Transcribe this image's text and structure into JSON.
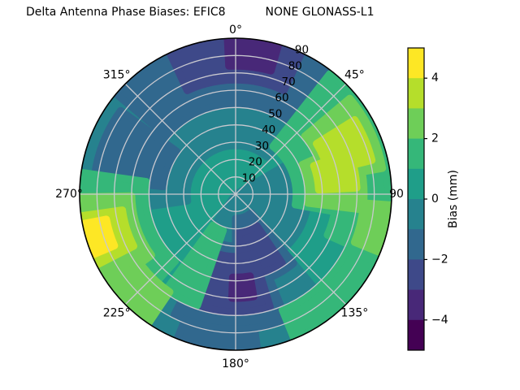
{
  "chart_data": {
    "type": "polar_contour",
    "title": "Delta Antenna Phase Biases: EFIC8           NONE GLONASS-L1",
    "projection": "azimuth clockwise from North (0° top), radial axis 0-90",
    "angular_ticks": [
      {
        "angle": 0,
        "label": "0°"
      },
      {
        "angle": 45,
        "label": "45°"
      },
      {
        "angle": 90,
        "label": "90"
      },
      {
        "angle": 135,
        "label": "135°"
      },
      {
        "angle": 180,
        "label": "180°"
      },
      {
        "angle": 225,
        "label": "225°"
      },
      {
        "angle": 270,
        "label": "270°"
      },
      {
        "angle": 315,
        "label": "315°"
      }
    ],
    "radial_ticks": [
      10,
      20,
      30,
      40,
      50,
      60,
      70,
      80,
      90
    ],
    "colorbar": {
      "label": "Bias (mm)",
      "range": [
        -5,
        5
      ],
      "n_levels": 10,
      "ticks": [
        4,
        2,
        0,
        -2,
        -4
      ],
      "tick_labels": [
        "4",
        "2",
        "0",
        "−2",
        "−4"
      ],
      "colors_low_to_high": [
        "#440154",
        "#482878",
        "#3e4989",
        "#31688e",
        "#26828e",
        "#1f9e89",
        "#35b779",
        "#6ece58",
        "#b5de2b",
        "#fde725"
      ]
    },
    "background_bias_mid": 0.5,
    "regions": [
      {
        "name": "upper-band-teal-blue",
        "bias_mid": -0.5,
        "az": [
          262,
          400
        ],
        "r": [
          28,
          90
        ]
      },
      {
        "name": "center-right-teal-blue",
        "bias_mid": -0.5,
        "az": [
          60,
          160
        ],
        "r": [
          0,
          42
        ]
      },
      {
        "name": "bottom-teal-blue",
        "bias_mid": -0.5,
        "az": [
          140,
          215
        ],
        "r": [
          0,
          88
        ]
      },
      {
        "name": "top-blue-band",
        "bias_mid": -1.5,
        "az": [
          310,
          407
        ],
        "r": [
          52,
          90
        ]
      },
      {
        "name": "left-blue-patch",
        "bias_mid": -1.5,
        "az": [
          276,
          306
        ],
        "r": [
          42,
          82
        ]
      },
      {
        "name": "bottom-blue-upper",
        "bias_mid": -1.5,
        "az": [
          140,
          180
        ],
        "r": [
          14,
          52
        ]
      },
      {
        "name": "bottom-blue-lower",
        "bias_mid": -1.5,
        "az": [
          158,
          207
        ],
        "r": [
          30,
          78
        ]
      },
      {
        "name": "bottom-edge-blue-arc",
        "bias_mid": -1.5,
        "az": [
          172,
          202
        ],
        "r": [
          78,
          90
        ]
      },
      {
        "name": "top-indigo-arc",
        "bias_mid": -2.5,
        "az": [
          335,
          385
        ],
        "r": [
          66,
          90
        ]
      },
      {
        "name": "bottom-indigo-upper",
        "bias_mid": -2.5,
        "az": [
          146,
          176
        ],
        "r": [
          22,
          48
        ]
      },
      {
        "name": "bottom-indigo-lower",
        "bias_mid": -2.5,
        "az": [
          163,
          199
        ],
        "r": [
          36,
          68
        ]
      },
      {
        "name": "top-purple-blob",
        "bias_mid": -3.5,
        "az": [
          357,
          376
        ],
        "r": [
          74,
          90
        ]
      },
      {
        "name": "bottom-purple-spot",
        "bias_mid": -3.5,
        "az": [
          170,
          182
        ],
        "r": [
          48,
          60
        ]
      },
      {
        "name": "upper-right-green",
        "bias_mid": 1.5,
        "az": [
          38,
          100
        ],
        "r": [
          35,
          88
        ]
      },
      {
        "name": "right-edge-green",
        "bias_mid": 1.5,
        "az": [
          92,
          114
        ],
        "r": [
          58,
          90
        ]
      },
      {
        "name": "left-edge-green-band",
        "bias_mid": 1.5,
        "az": [
          222,
          278
        ],
        "r": [
          52,
          90
        ]
      },
      {
        "name": "lower-left-green-finger",
        "bias_mid": 1.5,
        "az": [
          199,
          216
        ],
        "r": [
          22,
          68
        ]
      },
      {
        "name": "bottom-right-edge-green",
        "bias_mid": 1.5,
        "az": [
          116,
          158
        ],
        "r": [
          72,
          90
        ]
      },
      {
        "name": "upper-right-bright-a",
        "bias_mid": 2.5,
        "az": [
          50,
          80
        ],
        "r": [
          52,
          86
        ]
      },
      {
        "name": "upper-right-bright-b",
        "bias_mid": 2.5,
        "az": [
          66,
          97
        ],
        "r": [
          42,
          74
        ]
      },
      {
        "name": "left-bright-band",
        "bias_mid": 2.5,
        "az": [
          234,
          269
        ],
        "r": [
          60,
          90
        ]
      },
      {
        "name": "lower-left-bright-patch",
        "bias_mid": 2.5,
        "az": [
          214,
          232
        ],
        "r": [
          68,
          90
        ]
      },
      {
        "name": "right-edge-bright-patch",
        "bias_mid": 2.5,
        "az": [
          94,
          112
        ],
        "r": [
          74,
          90
        ]
      },
      {
        "name": "upper-right-yellowgreen-a",
        "bias_mid": 3.5,
        "az": [
          58,
          76
        ],
        "r": [
          55,
          81
        ]
      },
      {
        "name": "upper-right-yellowgreen-b",
        "bias_mid": 3.5,
        "az": [
          70,
          87
        ],
        "r": [
          48,
          70
        ]
      },
      {
        "name": "left-yellowgreen-band",
        "bias_mid": 3.5,
        "az": [
          243,
          262
        ],
        "r": [
          66,
          90
        ]
      },
      {
        "name": "left-yellow-sliver",
        "bias_mid": 4.5,
        "az": [
          247,
          259
        ],
        "r": [
          76,
          90
        ]
      }
    ]
  }
}
